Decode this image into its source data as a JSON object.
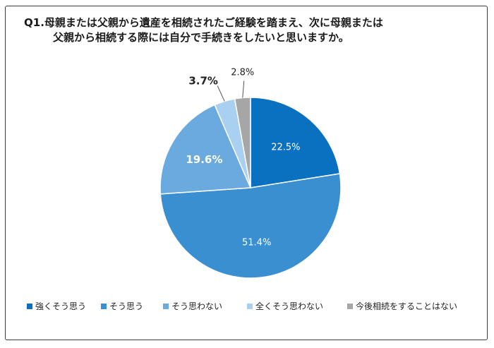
{
  "title": {
    "line1": "Q1.母親または父親から遺産を相続されたご経験を踏まえ、次に母親または",
    "line2": "父親から相続する際には自分で手続きをしたいと思いますか。"
  },
  "chart_data": {
    "type": "pie",
    "start_angle": "12 o'clock, clockwise",
    "legend_position": "bottom",
    "series": [
      {
        "name": "強くそう思う",
        "value": 22.5,
        "label": "22.5%",
        "color": "#0a70c0",
        "label_color": "#ffffff",
        "bold": false
      },
      {
        "name": "そう思う",
        "value": 51.4,
        "label": "51.4%",
        "color": "#3a8fd0",
        "label_color": "#ffffff",
        "bold": false
      },
      {
        "name": "そう思わない",
        "value": 19.6,
        "label": "19.6%",
        "color": "#6aaadf",
        "label_color": "#ffffff",
        "bold": true
      },
      {
        "name": "全くそう思わない",
        "value": 3.7,
        "label": "3.7%",
        "color": "#a9d0f1",
        "label_color": "#222222",
        "bold": true
      },
      {
        "name": "今後相続をすることはない",
        "value": 2.8,
        "label": "2.8%",
        "color": "#a6a6a6",
        "label_color": "#222222",
        "bold": false
      }
    ]
  }
}
